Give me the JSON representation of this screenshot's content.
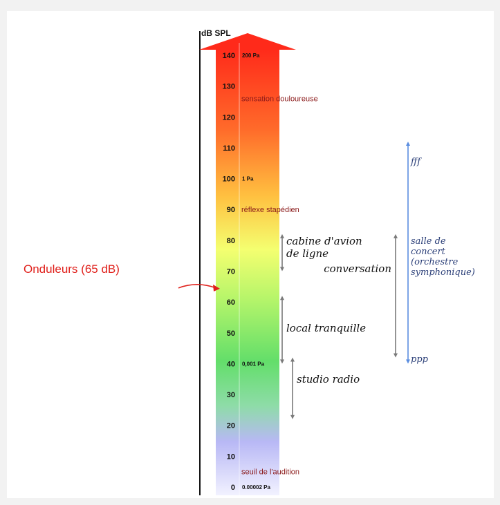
{
  "axis": {
    "unit": "dB SPL",
    "ticks": [
      0,
      10,
      20,
      30,
      40,
      50,
      60,
      70,
      80,
      90,
      100,
      110,
      120,
      130,
      140
    ],
    "ylim": [
      0,
      140
    ]
  },
  "pressure_labels": [
    {
      "db": 140,
      "text": "200 Pa"
    },
    {
      "db": 100,
      "text": "1 Pa"
    },
    {
      "db": 40,
      "text": "0,001 Pa"
    },
    {
      "db": 0,
      "text": "0.00002 Pa"
    }
  ],
  "thresholds": [
    {
      "db": 126,
      "text": "sensation douloureuse"
    },
    {
      "db": 90,
      "text": "réflexe stapédien"
    },
    {
      "db": 5,
      "text": "seuil de l'audition"
    }
  ],
  "activities": [
    {
      "text_lines": [
        "cabine d'avion",
        "de ligne"
      ],
      "range": [
        70,
        82
      ]
    },
    {
      "text_lines": [
        "conversation"
      ],
      "range": [
        42,
        82
      ]
    },
    {
      "text_lines": [
        "local tranquille"
      ],
      "range": [
        40,
        62
      ]
    },
    {
      "text_lines": [
        "studio radio"
      ],
      "range": [
        22,
        42
      ]
    }
  ],
  "music": {
    "top_label": "fff",
    "bottom_label": "ppp",
    "range": [
      40,
      112
    ],
    "text_lines": [
      "salle de",
      "concert",
      "(orchestre",
      "symphonique)"
    ]
  },
  "callout": {
    "text": "Onduleurs (65 dB)",
    "db": 65,
    "color": "#e0201b"
  },
  "colors": {
    "music_arrow": "#5a8de0",
    "range_arrow": "#7a7a7a",
    "threshold_text": "#8b1a1a"
  }
}
